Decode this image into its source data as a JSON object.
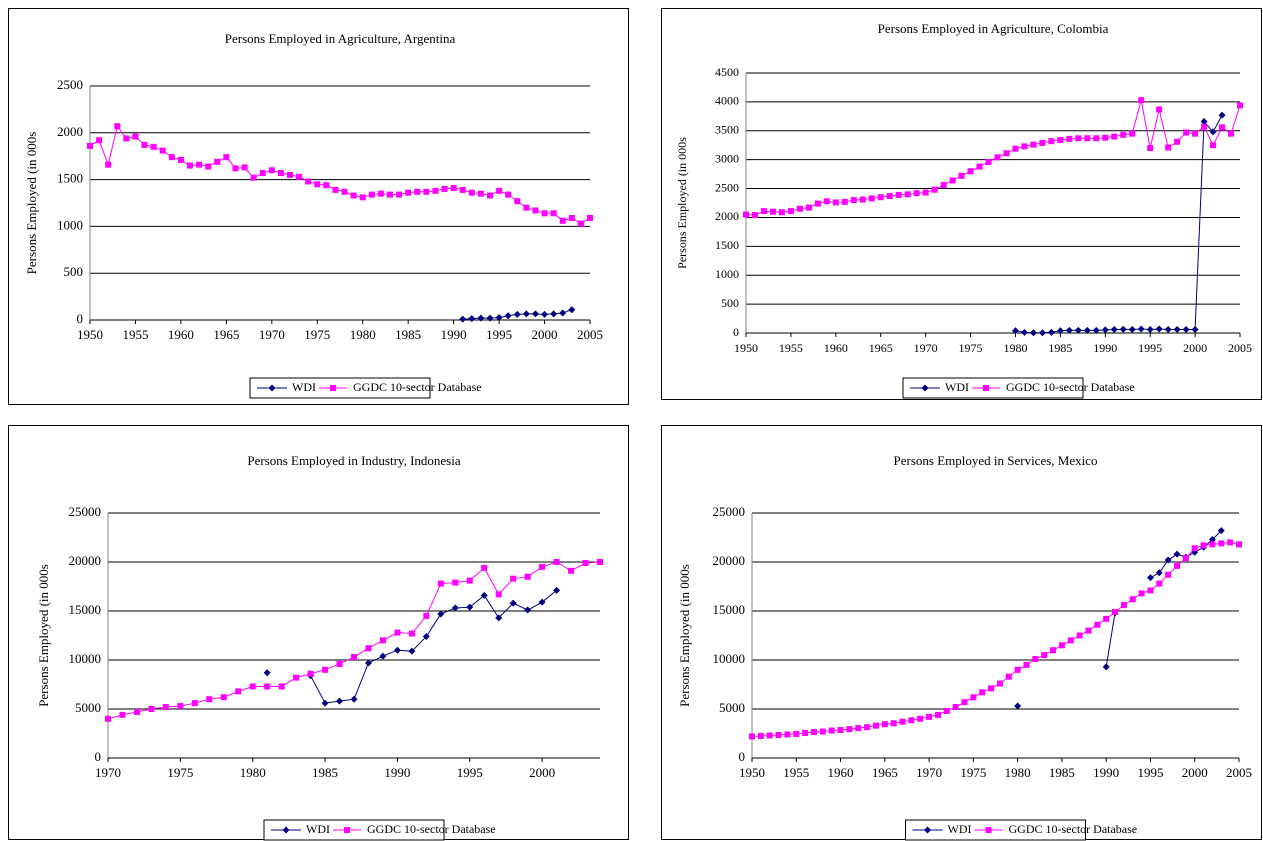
{
  "chart_data": [
    {
      "type": "line",
      "title": "Persons Employed in Agriculture, Argentina",
      "y_label": "Persons Employed (in 000s",
      "x": [
        1950,
        1951,
        1952,
        1953,
        1954,
        1955,
        1956,
        1957,
        1958,
        1959,
        1960,
        1961,
        1962,
        1963,
        1964,
        1965,
        1966,
        1967,
        1968,
        1969,
        1970,
        1971,
        1972,
        1973,
        1974,
        1975,
        1976,
        1977,
        1978,
        1979,
        1980,
        1981,
        1982,
        1983,
        1984,
        1985,
        1986,
        1987,
        1988,
        1989,
        1990,
        1991,
        1992,
        1993,
        1994,
        1995,
        1996,
        1997,
        1998,
        1999,
        2000,
        2001,
        2002,
        2003,
        2004,
        2005
      ],
      "xlim": [
        1950,
        2005
      ],
      "xticks": [
        1950,
        1955,
        1960,
        1965,
        1970,
        1975,
        1980,
        1985,
        1990,
        1995,
        2000,
        2005
      ],
      "ylim": [
        0,
        2500
      ],
      "yticks": [
        0,
        500,
        1000,
        1500,
        2000,
        2500
      ],
      "grid": true,
      "legend": "bottom",
      "series": [
        {
          "name": "WDI",
          "color": "#000080",
          "marker": "diamond",
          "values": [
            null,
            null,
            null,
            null,
            null,
            null,
            null,
            null,
            null,
            null,
            null,
            null,
            null,
            null,
            null,
            null,
            null,
            null,
            null,
            null,
            null,
            null,
            null,
            null,
            null,
            null,
            null,
            null,
            null,
            null,
            null,
            null,
            null,
            null,
            null,
            null,
            null,
            null,
            null,
            null,
            null,
            10,
            15,
            20,
            20,
            25,
            45,
            60,
            65,
            65,
            60,
            65,
            75,
            110,
            null,
            null
          ]
        },
        {
          "name": "GGDC 10-sector Database",
          "color": "#ff00ff",
          "marker": "square",
          "values": [
            1860,
            1920,
            1660,
            2070,
            1940,
            1960,
            1870,
            1850,
            1810,
            1740,
            1710,
            1650,
            1660,
            1640,
            1690,
            1740,
            1620,
            1630,
            1520,
            1570,
            1600,
            1570,
            1550,
            1530,
            1480,
            1450,
            1440,
            1390,
            1370,
            1330,
            1310,
            1340,
            1350,
            1340,
            1340,
            1360,
            1370,
            1370,
            1380,
            1400,
            1410,
            1390,
            1360,
            1350,
            1330,
            1380,
            1340,
            1270,
            1200,
            1170,
            1140,
            1140,
            1060,
            1090,
            1030,
            1090
          ]
        }
      ]
    },
    {
      "type": "line",
      "title": "Persons Employed in Agriculture, Colombia",
      "y_label": "Persons Employed (in 000s",
      "x": [
        1950,
        1951,
        1952,
        1953,
        1954,
        1955,
        1956,
        1957,
        1958,
        1959,
        1960,
        1961,
        1962,
        1963,
        1964,
        1965,
        1966,
        1967,
        1968,
        1969,
        1970,
        1971,
        1972,
        1973,
        1974,
        1975,
        1976,
        1977,
        1978,
        1979,
        1980,
        1981,
        1982,
        1983,
        1984,
        1985,
        1986,
        1987,
        1988,
        1989,
        1990,
        1991,
        1992,
        1993,
        1994,
        1995,
        1996,
        1997,
        1998,
        1999,
        2000,
        2001,
        2002,
        2003,
        2004,
        2005
      ],
      "xlim": [
        1950,
        2005
      ],
      "xticks": [
        1950,
        1955,
        1960,
        1965,
        1970,
        1975,
        1980,
        1985,
        1990,
        1995,
        2000,
        2005
      ],
      "ylim": [
        0,
        4500
      ],
      "yticks": [
        0,
        500,
        1000,
        1500,
        2000,
        2500,
        3000,
        3500,
        4000,
        4500
      ],
      "grid": true,
      "legend": "bottom",
      "series": [
        {
          "name": "WDI",
          "color": "#000080",
          "marker": "diamond",
          "values": [
            null,
            null,
            null,
            null,
            null,
            null,
            null,
            null,
            null,
            null,
            null,
            null,
            null,
            null,
            null,
            null,
            null,
            null,
            null,
            null,
            null,
            null,
            null,
            null,
            null,
            null,
            null,
            null,
            null,
            null,
            40,
            10,
            5,
            5,
            10,
            40,
            45,
            45,
            45,
            45,
            55,
            60,
            65,
            60,
            70,
            60,
            70,
            60,
            60,
            60,
            60,
            3660,
            3480,
            3770,
            null,
            null
          ]
        },
        {
          "name": "GGDC 10-sector Database",
          "color": "#ff00ff",
          "marker": "square",
          "values": [
            2050,
            2040,
            2110,
            2100,
            2090,
            2110,
            2150,
            2170,
            2240,
            2280,
            2260,
            2270,
            2300,
            2310,
            2330,
            2350,
            2370,
            2390,
            2400,
            2420,
            2430,
            2480,
            2560,
            2640,
            2720,
            2800,
            2880,
            2960,
            3040,
            3110,
            3190,
            3230,
            3260,
            3290,
            3320,
            3340,
            3360,
            3370,
            3370,
            3370,
            3380,
            3400,
            3430,
            3450,
            4030,
            3200,
            3870,
            3210,
            3310,
            3470,
            3450,
            3570,
            3250,
            3560,
            3450,
            3940
          ]
        }
      ]
    },
    {
      "type": "line",
      "title": "Persons Employed in Industry, Indonesia",
      "y_label": "Persons Employed (in 000s",
      "x": [
        1970,
        1971,
        1972,
        1973,
        1974,
        1975,
        1976,
        1977,
        1978,
        1979,
        1980,
        1981,
        1982,
        1983,
        1984,
        1985,
        1986,
        1987,
        1988,
        1989,
        1990,
        1991,
        1992,
        1993,
        1994,
        1995,
        1996,
        1997,
        1998,
        1999,
        2000,
        2001,
        2002,
        2003,
        2004
      ],
      "xlim": [
        1970,
        2004
      ],
      "xticks": [
        1970,
        1975,
        1980,
        1985,
        1990,
        1995,
        2000
      ],
      "ylim": [
        0,
        25000
      ],
      "yticks": [
        0,
        5000,
        10000,
        15000,
        20000,
        25000
      ],
      "grid": true,
      "legend": "bottom",
      "series": [
        {
          "name": "WDI",
          "color": "#000080",
          "marker": "diamond",
          "values": [
            null,
            null,
            null,
            null,
            null,
            null,
            null,
            null,
            null,
            null,
            null,
            8700,
            null,
            null,
            8400,
            5600,
            5800,
            6000,
            9700,
            10400,
            11000,
            10900,
            12400,
            14700,
            15300,
            15400,
            16600,
            14300,
            15800,
            15100,
            15900,
            17100,
            null,
            null,
            null
          ]
        },
        {
          "name": "GGDC 10-sector Database",
          "color": "#ff00ff",
          "marker": "square",
          "values": [
            4000,
            4400,
            4700,
            5000,
            5200,
            5300,
            5600,
            6000,
            6200,
            6800,
            7300,
            7300,
            7300,
            8200,
            8600,
            9000,
            9600,
            10300,
            11200,
            12000,
            12800,
            12700,
            14500,
            17800,
            17900,
            18100,
            19400,
            16700,
            18300,
            18500,
            19500,
            20000,
            19100,
            19900,
            20000
          ]
        }
      ]
    },
    {
      "type": "line",
      "title": "Persons Employed in Services, Mexico",
      "y_label": "Persons Employed (in 000s",
      "x": [
        1950,
        1951,
        1952,
        1953,
        1954,
        1955,
        1956,
        1957,
        1958,
        1959,
        1960,
        1961,
        1962,
        1963,
        1964,
        1965,
        1966,
        1967,
        1968,
        1969,
        1970,
        1971,
        1972,
        1973,
        1974,
        1975,
        1976,
        1977,
        1978,
        1979,
        1980,
        1981,
        1982,
        1983,
        1984,
        1985,
        1986,
        1987,
        1988,
        1989,
        1990,
        1991,
        1992,
        1993,
        1994,
        1995,
        1996,
        1997,
        1998,
        1999,
        2000,
        2001,
        2002,
        2003,
        2004,
        2005
      ],
      "xlim": [
        1950,
        2005
      ],
      "xticks": [
        1950,
        1955,
        1960,
        1965,
        1970,
        1975,
        1980,
        1985,
        1990,
        1995,
        2000,
        2005
      ],
      "ylim": [
        0,
        25000
      ],
      "yticks": [
        0,
        5000,
        10000,
        15000,
        20000,
        25000
      ],
      "grid": true,
      "legend": "bottom",
      "series": [
        {
          "name": "WDI",
          "color": "#000080",
          "marker": "diamond",
          "values": [
            null,
            null,
            null,
            null,
            null,
            null,
            null,
            null,
            null,
            null,
            null,
            null,
            null,
            null,
            null,
            null,
            null,
            null,
            null,
            null,
            null,
            null,
            null,
            null,
            null,
            null,
            null,
            null,
            null,
            null,
            5300,
            null,
            null,
            null,
            null,
            null,
            null,
            null,
            null,
            null,
            9300,
            14800,
            null,
            null,
            null,
            18400,
            18900,
            20200,
            20800,
            20500,
            21000,
            21500,
            22300,
            23200,
            null,
            null
          ]
        },
        {
          "name": "GGDC 10-sector Database",
          "color": "#ff00ff",
          "marker": "square",
          "values": [
            2200,
            2250,
            2300,
            2350,
            2400,
            2450,
            2550,
            2650,
            2700,
            2800,
            2850,
            2950,
            3050,
            3150,
            3300,
            3450,
            3550,
            3700,
            3850,
            4000,
            4200,
            4400,
            4800,
            5200,
            5700,
            6200,
            6700,
            7100,
            7600,
            8300,
            9000,
            9500,
            10100,
            10500,
            11000,
            11500,
            12000,
            12500,
            13000,
            13600,
            14200,
            14900,
            15600,
            16200,
            16800,
            17100,
            17800,
            18700,
            19600,
            20400,
            21400,
            21700,
            21800,
            21900,
            22000,
            21800
          ]
        }
      ]
    }
  ]
}
